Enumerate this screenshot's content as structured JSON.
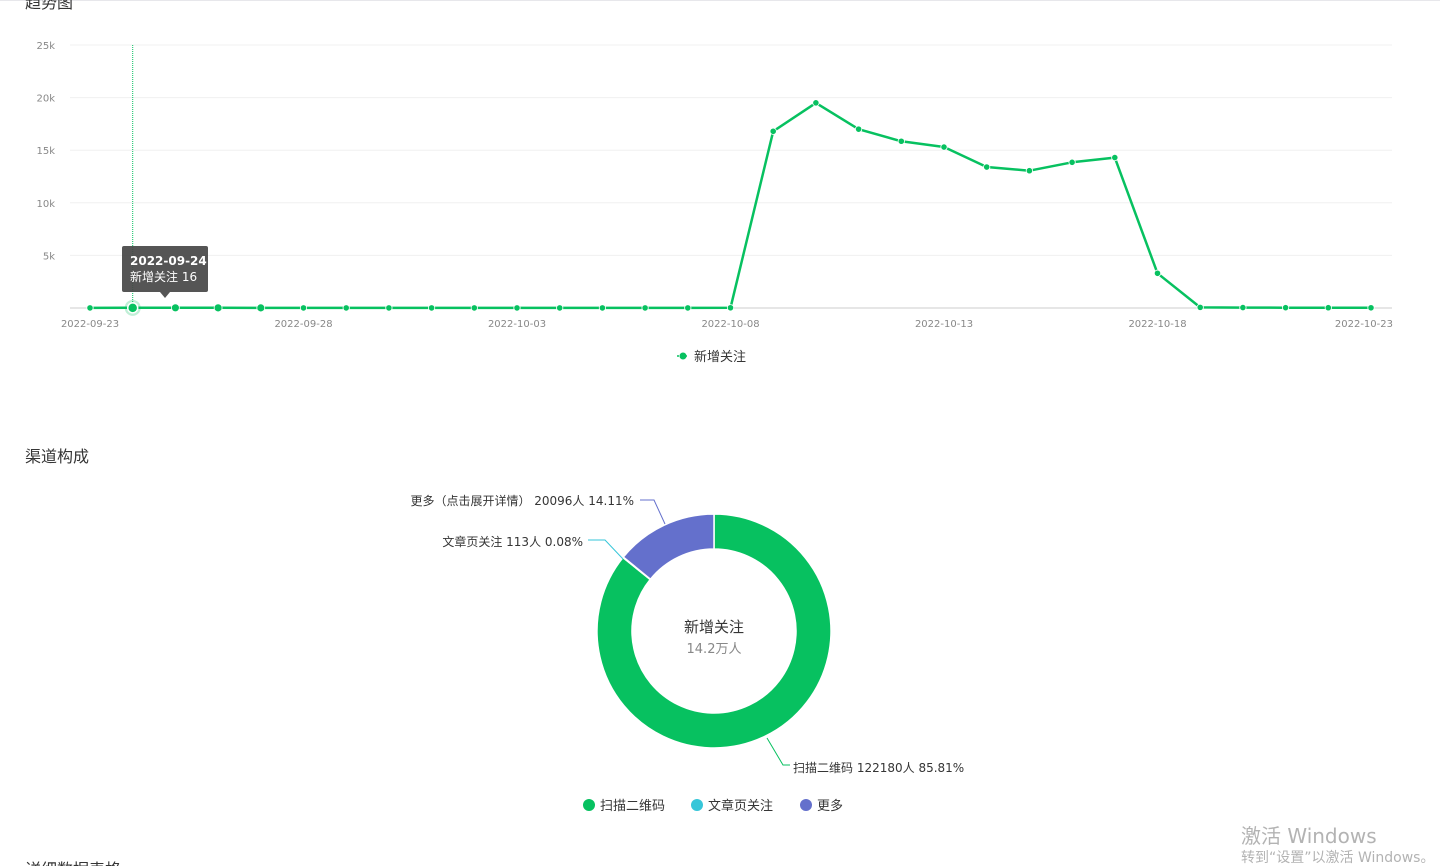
{
  "sections": {
    "trend_title": "趋势图",
    "channel_title": "渠道构成",
    "table_title": "详细数据表格"
  },
  "tooltip": {
    "date": "2022-09-24",
    "text": "新增关注 16"
  },
  "watermark": {
    "main": "激活 Windows",
    "sub": "转到“设置”以激活 Windows。"
  },
  "colors": {
    "line": "#07c160",
    "qr": "#07c160",
    "article": "#36c6d9",
    "more": "#6470cc"
  },
  "chart_data": [
    {
      "type": "line",
      "x": [
        "2022-09-23",
        "2022-09-24",
        "2022-09-25",
        "2022-09-26",
        "2022-09-27",
        "2022-09-28",
        "2022-09-29",
        "2022-09-30",
        "2022-10-01",
        "2022-10-02",
        "2022-10-03",
        "2022-10-04",
        "2022-10-05",
        "2022-10-06",
        "2022-10-07",
        "2022-10-08",
        "2022-10-09",
        "2022-10-10",
        "2022-10-11",
        "2022-10-12",
        "2022-10-13",
        "2022-10-14",
        "2022-10-15",
        "2022-10-16",
        "2022-10-17",
        "2022-10-18",
        "2022-10-19",
        "2022-10-20",
        "2022-10-21",
        "2022-10-22",
        "2022-10-23"
      ],
      "x_tick_labels": [
        "2022-09-23",
        "2022-09-28",
        "2022-10-03",
        "2022-10-08",
        "2022-10-13",
        "2022-10-18",
        "2022-10-23"
      ],
      "y_tick_labels": [
        "5k",
        "10k",
        "15k",
        "20k",
        "25k"
      ],
      "ylim": [
        0,
        25000
      ],
      "grid": true,
      "series": [
        {
          "name": "新增关注",
          "values": [
            10,
            16,
            20,
            15,
            12,
            10,
            10,
            10,
            10,
            10,
            10,
            10,
            10,
            10,
            10,
            20,
            16800,
            19500,
            17000,
            15850,
            15300,
            13400,
            13050,
            13850,
            14300,
            3300,
            60,
            40,
            30,
            25,
            20
          ]
        }
      ],
      "legend_position": "bottom-center"
    },
    {
      "type": "pie",
      "donut": true,
      "center_title": "新增关注",
      "center_value": "14.2万人",
      "slices": [
        {
          "name": "扫描二维码",
          "value": 122180,
          "label": "扫描二维码 122180人 85.81%"
        },
        {
          "name": "文章页关注",
          "value": 113,
          "label": "文章页关注 113人 0.08%"
        },
        {
          "name": "更多",
          "value": 20096,
          "label": "更多（点击展开详情） 20096人 14.11%"
        }
      ],
      "legend": [
        "扫描二维码",
        "文章页关注",
        "更多"
      ],
      "legend_position": "bottom-center"
    }
  ]
}
